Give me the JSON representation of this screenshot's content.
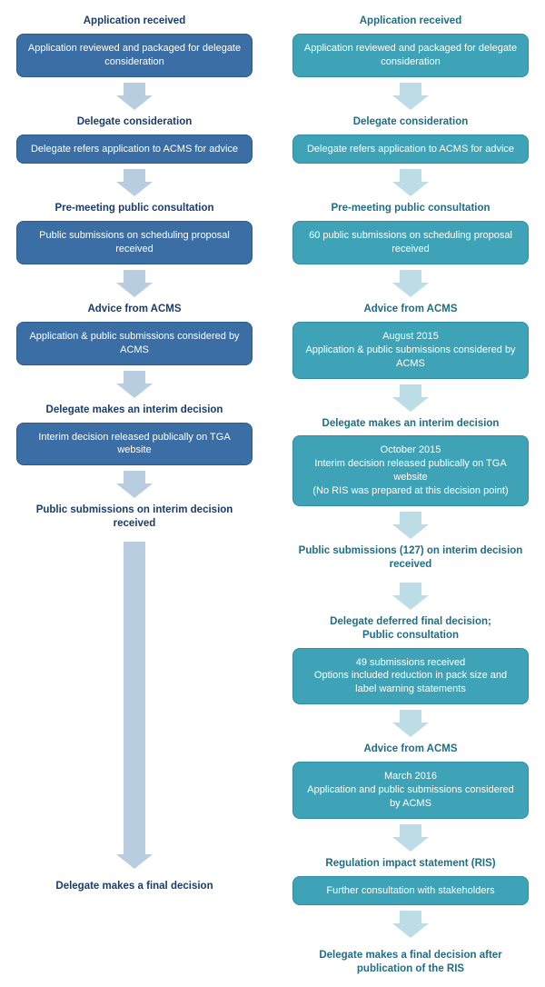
{
  "colors": {
    "left_title": "#1a3d6d",
    "left_box_bg": "#3b6ea5",
    "left_box_border": "#2a5a92",
    "left_arrow": "#b9cde1",
    "right_title": "#1f6d86",
    "right_box_bg": "#3fa3b8",
    "right_box_border": "#2e8da3",
    "right_arrow": "#bcdde5"
  },
  "left": {
    "steps": [
      {
        "title": "Application received",
        "box": "Application reviewed and packaged for delegate consideration"
      },
      {
        "title": "Delegate consideration",
        "box": "Delegate refers application to ACMS for advice"
      },
      {
        "title": "Pre-meeting public consultation",
        "box": "Public submissions on scheduling proposal received"
      },
      {
        "title": "Advice from ACMS",
        "box": "Application & public submissions considered by ACMS"
      },
      {
        "title": "Delegate makes an interim decision",
        "box": "Interim decision released publically on TGA website"
      }
    ],
    "mid_title": "Public submissions on interim decision received",
    "final": "Delegate makes a final decision"
  },
  "right": {
    "steps": [
      {
        "title": "Application received",
        "box": "Application reviewed and packaged for delegate consideration"
      },
      {
        "title": "Delegate consideration",
        "box": "Delegate refers application to ACMS for advice"
      },
      {
        "title": "Pre-meeting public consultation",
        "box": "60 public submissions on scheduling proposal received"
      },
      {
        "title": "Advice from ACMS",
        "box": "August 2015\nApplication & public submissions considered by ACMS"
      },
      {
        "title": "Delegate makes an interim decision",
        "box": "October 2015\nInterim decision released publically on TGA website\n(No RIS was prepared at this decision point)"
      },
      {
        "title": "Public submissions (127) on interim decision received",
        "box": null
      },
      {
        "title": "Delegate deferred final decision;\nPublic consultation",
        "box": "49 submissions received\nOptions included reduction in pack size and label warning statements"
      },
      {
        "title": "Advice from ACMS",
        "box": "March 2016\nApplication and public submissions considered by ACMS"
      },
      {
        "title": "Regulation impact statement (RIS)",
        "box": "Further consultation with stakeholders"
      }
    ],
    "final": "Delegate makes a final decision after publication of the RIS"
  }
}
